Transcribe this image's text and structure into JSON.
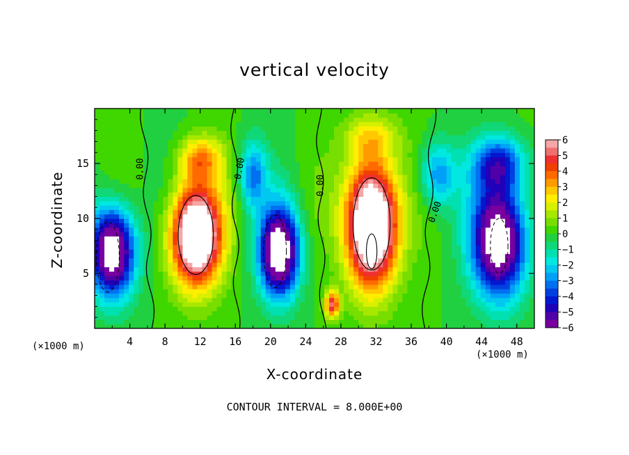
{
  "chart_data": {
    "type": "heatmap",
    "title": "vertical velocity",
    "xlabel": "X-coordinate",
    "ylabel": "Z-coordinate",
    "x_unit_label": "(×1000 m)",
    "xlim": [
      0,
      50
    ],
    "ylim": [
      0,
      20
    ],
    "x_ticks": [
      4,
      8,
      12,
      16,
      20,
      24,
      28,
      32,
      36,
      40,
      44,
      48
    ],
    "y_ticks": [
      5,
      10,
      15
    ],
    "footer": "CONTOUR INTERVAL = 8.000E+00",
    "zero_contour_label": "0.00",
    "colorbar": {
      "ticks": [
        6,
        5,
        4,
        3,
        2,
        1,
        0,
        -1,
        -2,
        -3,
        -4,
        -5,
        -6
      ],
      "levels": [
        {
          "value": 6,
          "color": "#f5a6a6"
        },
        {
          "value": 5.5,
          "color": "#f07070"
        },
        {
          "value": 5,
          "color": "#ee3030"
        },
        {
          "value": 4.5,
          "color": "#f04000"
        },
        {
          "value": 4,
          "color": "#ff6a00"
        },
        {
          "value": 3.5,
          "color": "#ff9a00"
        },
        {
          "value": 3,
          "color": "#ffc800"
        },
        {
          "value": 2.5,
          "color": "#ffee00"
        },
        {
          "value": 2,
          "color": "#d8f000"
        },
        {
          "value": 1.5,
          "color": "#a8e800"
        },
        {
          "value": 1,
          "color": "#78de00"
        },
        {
          "value": 0.5,
          "color": "#40d600"
        },
        {
          "value": 0,
          "color": "#20d040"
        },
        {
          "value": -0.5,
          "color": "#10d878"
        },
        {
          "value": -1,
          "color": "#00e0b0"
        },
        {
          "value": -1.5,
          "color": "#00e8e0"
        },
        {
          "value": -2,
          "color": "#00c8f0"
        },
        {
          "value": -2.5,
          "color": "#00a0f8"
        },
        {
          "value": -3,
          "color": "#0070f0"
        },
        {
          "value": -3.5,
          "color": "#0040e0"
        },
        {
          "value": -4,
          "color": "#0018d0"
        },
        {
          "value": -4.5,
          "color": "#2000b8"
        },
        {
          "value": -5,
          "color": "#5000a8"
        },
        {
          "value": -5.5,
          "color": "#7800a0"
        }
      ]
    },
    "features": [
      {
        "kind": "updraft",
        "x": 11.5,
        "z": 8.5,
        "amplitude": 9,
        "sx": 2.8,
        "sz": 4.5
      },
      {
        "kind": "updraft",
        "x": 31.5,
        "z": 9.5,
        "amplitude": 10,
        "sx": 2.8,
        "sz": 5.5
      },
      {
        "kind": "updraft",
        "x": 27,
        "z": 2.2,
        "amplitude": 5,
        "sx": 0.8,
        "sz": 1.2
      },
      {
        "kind": "downdraft",
        "x": 2,
        "z": 7,
        "amplitude": -8,
        "sx": 2.5,
        "sz": 4
      },
      {
        "kind": "downdraft",
        "x": 21,
        "z": 7,
        "amplitude": -8,
        "sx": 2.2,
        "sz": 4
      },
      {
        "kind": "downdraft",
        "x": 46,
        "z": 8,
        "amplitude": -8,
        "sx": 3,
        "sz": 5
      },
      {
        "kind": "downdraft",
        "x": 39,
        "z": 14,
        "amplitude": -3,
        "sx": 2,
        "sz": 3
      },
      {
        "kind": "downdraft",
        "x": 18,
        "z": 14,
        "amplitude": -3,
        "sx": 1.5,
        "sz": 3
      },
      {
        "kind": "downdraft",
        "x": 46,
        "z": 15,
        "amplitude": -4,
        "sx": 3,
        "sz": 2.5
      },
      {
        "kind": "updraft",
        "x": 12,
        "z": 15.5,
        "amplitude": 3,
        "sx": 2.5,
        "sz": 2
      },
      {
        "kind": "updraft",
        "x": 31.5,
        "z": 17.5,
        "amplitude": 2,
        "sx": 3,
        "sz": 2
      }
    ]
  }
}
